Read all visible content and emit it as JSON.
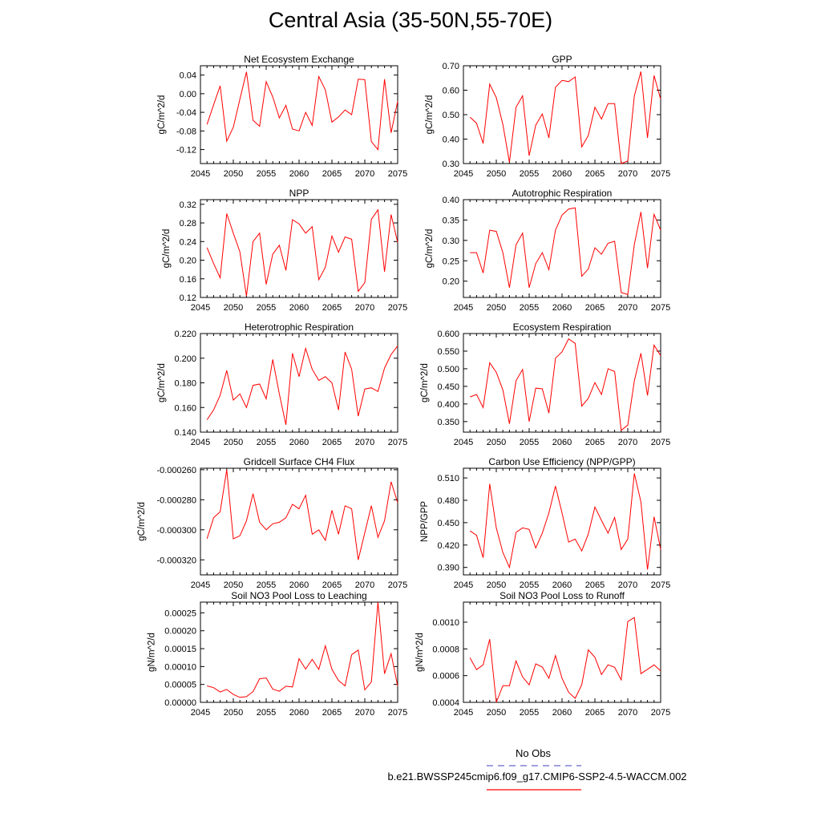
{
  "title": "Central Asia (35-50N,55-70E)",
  "legend": {
    "obs_label": "No Obs",
    "obs_color": "#6666cc",
    "model_label": "b.e21.BWSSP245cmip6.f09_g17.CMIP6-SSP2-4.5-WACCM.002",
    "model_color": "#ff0000"
  },
  "chart_data": [
    {
      "type": "line",
      "title": "Net Ecosystem Exchange",
      "ylabel": "gC/m^2/d",
      "xlabel": "",
      "xlim": [
        2045,
        2075
      ],
      "ylim": [
        -0.15,
        0.06
      ],
      "xticks": [
        2045,
        2050,
        2055,
        2060,
        2065,
        2070,
        2075
      ],
      "yticks": [
        0.04,
        0.0,
        -0.04,
        -0.08,
        -0.12
      ],
      "yticklabels": [
        "0.04",
        "0.00",
        "-0.04",
        "-0.08",
        "-0.12"
      ],
      "series": [
        {
          "color": "#ff0000",
          "x": [
            2046,
            2047,
            2048,
            2049,
            2050,
            2051,
            2052,
            2053,
            2054,
            2055,
            2056,
            2057,
            2058,
            2059,
            2060,
            2061,
            2062,
            2063,
            2064,
            2065,
            2066,
            2067,
            2068,
            2069,
            2070,
            2071,
            2072,
            2073,
            2074,
            2075
          ],
          "values": [
            -0.066,
            -0.024,
            0.017,
            -0.102,
            -0.072,
            -0.012,
            0.047,
            -0.057,
            -0.07,
            0.026,
            -0.007,
            -0.052,
            -0.025,
            -0.076,
            -0.08,
            -0.04,
            -0.068,
            0.037,
            0.008,
            -0.061,
            -0.05,
            -0.035,
            -0.045,
            0.031,
            0.03,
            -0.103,
            -0.12,
            0.031,
            -0.084,
            -0.016
          ]
        }
      ]
    },
    {
      "type": "line",
      "title": "GPP",
      "ylabel": "gC/m^2/d",
      "xlabel": "",
      "xlim": [
        2045,
        2075
      ],
      "ylim": [
        0.3,
        0.7
      ],
      "xticks": [
        2045,
        2050,
        2055,
        2060,
        2065,
        2070,
        2075
      ],
      "yticks": [
        0.7,
        0.6,
        0.5,
        0.4,
        0.3
      ],
      "yticklabels": [
        "0.70",
        "0.60",
        "0.50",
        "0.40",
        "0.30"
      ],
      "series": [
        {
          "color": "#ff0000",
          "x": [
            2046,
            2047,
            2048,
            2049,
            2050,
            2051,
            2052,
            2053,
            2054,
            2055,
            2056,
            2057,
            2058,
            2059,
            2060,
            2061,
            2062,
            2063,
            2064,
            2065,
            2066,
            2067,
            2068,
            2069,
            2070,
            2071,
            2072,
            2073,
            2074,
            2075
          ],
          "values": [
            0.49,
            0.465,
            0.382,
            0.625,
            0.57,
            0.46,
            0.305,
            0.53,
            0.577,
            0.332,
            0.457,
            0.503,
            0.405,
            0.612,
            0.64,
            0.635,
            0.654,
            0.368,
            0.415,
            0.53,
            0.482,
            0.545,
            0.545,
            0.3,
            0.31,
            0.577,
            0.676,
            0.405,
            0.66,
            0.563
          ]
        }
      ]
    },
    {
      "type": "line",
      "title": "NPP",
      "ylabel": "gC/m^2/d",
      "xlabel": "",
      "xlim": [
        2045,
        2075
      ],
      "ylim": [
        0.12,
        0.33
      ],
      "xticks": [
        2045,
        2050,
        2055,
        2060,
        2065,
        2070,
        2075
      ],
      "yticks": [
        0.32,
        0.28,
        0.24,
        0.2,
        0.16,
        0.12
      ],
      "yticklabels": [
        "0.32",
        "0.28",
        "0.24",
        "0.20",
        "0.16",
        "0.12"
      ],
      "series": [
        {
          "color": "#ff0000",
          "x": [
            2046,
            2047,
            2048,
            2049,
            2050,
            2051,
            2052,
            2053,
            2054,
            2055,
            2056,
            2057,
            2058,
            2059,
            2060,
            2061,
            2062,
            2063,
            2064,
            2065,
            2066,
            2067,
            2068,
            2069,
            2070,
            2071,
            2072,
            2073,
            2074,
            2075
          ],
          "values": [
            0.227,
            0.193,
            0.162,
            0.3,
            0.258,
            0.218,
            0.123,
            0.24,
            0.258,
            0.148,
            0.213,
            0.232,
            0.178,
            0.287,
            0.278,
            0.258,
            0.272,
            0.158,
            0.185,
            0.252,
            0.217,
            0.25,
            0.245,
            0.133,
            0.152,
            0.288,
            0.308,
            0.175,
            0.298,
            0.238
          ]
        }
      ]
    },
    {
      "type": "line",
      "title": "Autotrophic Respiration",
      "ylabel": "gC/m^2/d",
      "xlabel": "",
      "xlim": [
        2045,
        2075
      ],
      "ylim": [
        0.16,
        0.4
      ],
      "xticks": [
        2045,
        2050,
        2055,
        2060,
        2065,
        2070,
        2075
      ],
      "yticks": [
        0.4,
        0.35,
        0.3,
        0.25,
        0.2
      ],
      "yticklabels": [
        "0.40",
        "0.35",
        "0.30",
        "0.25",
        "0.20"
      ],
      "series": [
        {
          "color": "#ff0000",
          "x": [
            2046,
            2047,
            2048,
            2049,
            2050,
            2051,
            2052,
            2053,
            2054,
            2055,
            2056,
            2057,
            2058,
            2059,
            2060,
            2061,
            2062,
            2063,
            2064,
            2065,
            2066,
            2067,
            2068,
            2069,
            2070,
            2071,
            2072,
            2073,
            2074,
            2075
          ],
          "values": [
            0.27,
            0.27,
            0.22,
            0.325,
            0.322,
            0.27,
            0.184,
            0.289,
            0.318,
            0.184,
            0.243,
            0.27,
            0.228,
            0.325,
            0.362,
            0.377,
            0.38,
            0.212,
            0.23,
            0.282,
            0.266,
            0.293,
            0.298,
            0.172,
            0.167,
            0.29,
            0.37,
            0.232,
            0.364,
            0.325
          ]
        }
      ]
    },
    {
      "type": "line",
      "title": "Heterotrophic Respiration",
      "ylabel": "gC/m^2/d",
      "xlabel": "",
      "xlim": [
        2045,
        2075
      ],
      "ylim": [
        0.14,
        0.22
      ],
      "xticks": [
        2045,
        2050,
        2055,
        2060,
        2065,
        2070,
        2075
      ],
      "yticks": [
        0.22,
        0.2,
        0.18,
        0.16,
        0.14
      ],
      "yticklabels": [
        "0.220",
        "0.200",
        "0.180",
        "0.160",
        "0.140"
      ],
      "series": [
        {
          "color": "#ff0000",
          "x": [
            2046,
            2047,
            2048,
            2049,
            2050,
            2051,
            2052,
            2053,
            2054,
            2055,
            2056,
            2057,
            2058,
            2059,
            2060,
            2061,
            2062,
            2063,
            2064,
            2065,
            2066,
            2067,
            2068,
            2069,
            2070,
            2071,
            2072,
            2073,
            2074,
            2075
          ],
          "values": [
            0.15,
            0.158,
            0.17,
            0.19,
            0.166,
            0.171,
            0.16,
            0.178,
            0.179,
            0.167,
            0.199,
            0.171,
            0.146,
            0.204,
            0.185,
            0.208,
            0.191,
            0.182,
            0.185,
            0.18,
            0.158,
            0.205,
            0.191,
            0.153,
            0.175,
            0.176,
            0.173,
            0.192,
            0.203,
            0.21
          ]
        }
      ]
    },
    {
      "type": "line",
      "title": "Ecosystem Respiration",
      "ylabel": "gC/m^2/d",
      "xlabel": "",
      "xlim": [
        2045,
        2075
      ],
      "ylim": [
        0.32,
        0.6
      ],
      "xticks": [
        2045,
        2050,
        2055,
        2060,
        2065,
        2070,
        2075
      ],
      "yticks": [
        0.6,
        0.55,
        0.5,
        0.45,
        0.4,
        0.35
      ],
      "yticklabels": [
        "0.600",
        "0.550",
        "0.500",
        "0.450",
        "0.400",
        "0.350"
      ],
      "series": [
        {
          "color": "#ff0000",
          "x": [
            2046,
            2047,
            2048,
            2049,
            2050,
            2051,
            2052,
            2053,
            2054,
            2055,
            2056,
            2057,
            2058,
            2059,
            2060,
            2061,
            2062,
            2063,
            2064,
            2065,
            2066,
            2067,
            2068,
            2069,
            2070,
            2071,
            2072,
            2073,
            2074,
            2075
          ],
          "values": [
            0.42,
            0.427,
            0.39,
            0.517,
            0.49,
            0.44,
            0.344,
            0.466,
            0.498,
            0.35,
            0.445,
            0.443,
            0.374,
            0.53,
            0.548,
            0.585,
            0.572,
            0.394,
            0.416,
            0.461,
            0.427,
            0.5,
            0.492,
            0.325,
            0.34,
            0.466,
            0.544,
            0.424,
            0.567,
            0.537
          ]
        }
      ]
    },
    {
      "type": "line",
      "title": "Gridcell Surface CH4 Flux",
      "ylabel": "gC/m^2/d",
      "xlabel": "",
      "xlim": [
        2045,
        2075
      ],
      "ylim": [
        -0.00033,
        -0.000259
      ],
      "xticks": [
        2045,
        2050,
        2055,
        2060,
        2065,
        2070,
        2075
      ],
      "yticks": [
        -0.00026,
        -0.00028,
        -0.0003,
        -0.00032
      ],
      "yticklabels": [
        "-0.000260",
        "-0.000280",
        "-0.000300",
        "-0.000320"
      ],
      "series": [
        {
          "color": "#ff0000",
          "x": [
            2046,
            2047,
            2048,
            2049,
            2050,
            2051,
            2052,
            2053,
            2054,
            2055,
            2056,
            2057,
            2058,
            2059,
            2060,
            2061,
            2062,
            2063,
            2064,
            2065,
            2066,
            2067,
            2068,
            2069,
            2070,
            2071,
            2072,
            2073,
            2074,
            2075
          ],
          "values": [
            -0.000306,
            -0.000292,
            -0.000288,
            -0.00026,
            -0.000306,
            -0.000304,
            -0.000294,
            -0.000276,
            -0.000295,
            -0.0003,
            -0.000296,
            -0.000295,
            -0.000292,
            -0.000283,
            -0.000286,
            -0.000277,
            -0.000303,
            -0.0003,
            -0.000307,
            -0.000287,
            -0.000303,
            -0.000284,
            -0.000286,
            -0.00032,
            -0.000302,
            -0.000284,
            -0.000305,
            -0.000294,
            -0.000268,
            -0.000282
          ]
        }
      ]
    },
    {
      "type": "line",
      "title": "Carbon Use Efficiency (NPP/GPP)",
      "ylabel": "NPP/GPP",
      "xlabel": "",
      "xlim": [
        2045,
        2075
      ],
      "ylim": [
        0.38,
        0.523
      ],
      "xticks": [
        2045,
        2050,
        2055,
        2060,
        2065,
        2070,
        2075
      ],
      "yticks": [
        0.51,
        0.48,
        0.45,
        0.42,
        0.39
      ],
      "yticklabels": [
        "0.510",
        "0.480",
        "0.450",
        "0.420",
        "0.390"
      ],
      "series": [
        {
          "color": "#ff0000",
          "x": [
            2046,
            2047,
            2048,
            2049,
            2050,
            2051,
            2052,
            2053,
            2054,
            2055,
            2056,
            2057,
            2058,
            2059,
            2060,
            2061,
            2062,
            2063,
            2064,
            2065,
            2066,
            2067,
            2068,
            2069,
            2070,
            2071,
            2072,
            2073,
            2074,
            2075
          ],
          "values": [
            0.439,
            0.433,
            0.403,
            0.502,
            0.443,
            0.41,
            0.39,
            0.437,
            0.443,
            0.441,
            0.416,
            0.436,
            0.463,
            0.499,
            0.463,
            0.424,
            0.428,
            0.412,
            0.435,
            0.471,
            0.453,
            0.436,
            0.457,
            0.414,
            0.428,
            0.516,
            0.478,
            0.387,
            0.458,
            0.414
          ]
        }
      ]
    },
    {
      "type": "line",
      "title": "Soil NO3 Pool Loss to Leaching",
      "ylabel": "gN/m^2/d",
      "xlabel": "",
      "xlim": [
        2045,
        2075
      ],
      "ylim": [
        0,
        0.00028
      ],
      "xticks": [
        2045,
        2050,
        2055,
        2060,
        2065,
        2070,
        2075
      ],
      "yticks": [
        0.00025,
        0.0002,
        0.00015,
        0.0001,
        5e-05,
        0.0
      ],
      "yticklabels": [
        "0.00025",
        "0.00020",
        "0.00015",
        "0.00010",
        "0.00005",
        "0.00000"
      ],
      "series": [
        {
          "color": "#ff0000",
          "x": [
            2046,
            2047,
            2048,
            2049,
            2050,
            2051,
            2052,
            2053,
            2054,
            2055,
            2056,
            2057,
            2058,
            2059,
            2060,
            2061,
            2062,
            2063,
            2064,
            2065,
            2066,
            2067,
            2068,
            2069,
            2070,
            2071,
            2072,
            2073,
            2074,
            2075
          ],
          "values": [
            4.6e-05,
            4.1e-05,
            2.9e-05,
            3.6e-05,
            2.2e-05,
            1.4e-05,
            1.6e-05,
            3e-05,
            6.6e-05,
            6.8e-05,
            3.7e-05,
            3.1e-05,
            4.5e-05,
            4.3e-05,
            0.000122,
            9.3e-05,
            0.00012,
            9.2e-05,
            0.000158,
            9.2e-05,
            6.1e-05,
            4.6e-05,
            0.000133,
            0.000146,
            3.5e-05,
            5.7e-05,
            0.00028,
            8e-05,
            0.000136,
            4.5e-05
          ]
        }
      ]
    },
    {
      "type": "line",
      "title": "Soil NO3 Pool Loss to Runoff",
      "ylabel": "gN/m^2/d",
      "xlabel": "",
      "xlim": [
        2045,
        2075
      ],
      "ylim": [
        0.0004,
        0.00115
      ],
      "xticks": [
        2045,
        2050,
        2055,
        2060,
        2065,
        2070,
        2075
      ],
      "yticks": [
        0.001,
        0.0008,
        0.0006,
        0.0004
      ],
      "yticklabels": [
        "0.0010",
        "0.0008",
        "0.0006",
        "0.0004"
      ],
      "series": [
        {
          "color": "#ff0000",
          "x": [
            2046,
            2047,
            2048,
            2049,
            2050,
            2051,
            2052,
            2053,
            2054,
            2055,
            2056,
            2057,
            2058,
            2059,
            2060,
            2061,
            2062,
            2063,
            2064,
            2065,
            2066,
            2067,
            2068,
            2069,
            2070,
            2071,
            2072,
            2073,
            2074,
            2075
          ],
          "values": [
            0.000733,
            0.000645,
            0.000681,
            0.000873,
            0.0004,
            0.000525,
            0.000525,
            0.00071,
            0.00059,
            0.000531,
            0.000688,
            0.000664,
            0.00058,
            0.00075,
            0.00058,
            0.000475,
            0.00043,
            0.000532,
            0.000793,
            0.000737,
            0.000608,
            0.000681,
            0.000662,
            0.000568,
            0.001005,
            0.001035,
            0.000615,
            0.000647,
            0.00068,
            0.000636
          ]
        }
      ]
    }
  ]
}
